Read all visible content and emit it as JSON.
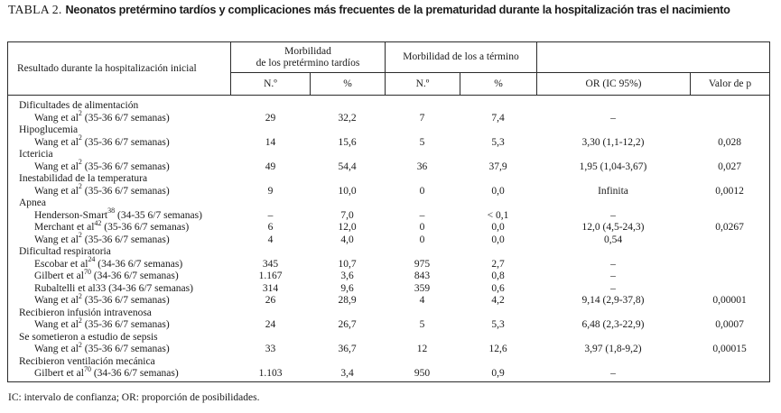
{
  "colors": {
    "ink": "#1a1a1a",
    "border": "#2b2b2b",
    "background": "#ffffff"
  },
  "title": {
    "prefix": "TABLA 2.",
    "text": "Neonatos pretérmino tardíos y complicaciones más frecuentes de la prematuridad durante la hospitalización tras el nacimiento"
  },
  "table": {
    "header": {
      "col_resultado": "Resultado durante la hospitalización inicial",
      "group_preterm_line1": "Morbilidad",
      "group_preterm_line2": "de los pretérmino tardíos",
      "group_term": "Morbilidad de los a término",
      "sub": [
        "N.º",
        "%",
        "N.º",
        "%",
        "OR (IC 95%)",
        "Valor de p"
      ]
    },
    "rows": [
      {
        "type": "category",
        "label": "Dificultades de alimentación"
      },
      {
        "type": "study",
        "pre": "Wang et al",
        "sup": "2",
        "post": " (35-36 6/7 semanas)",
        "cells": [
          "29",
          "32,2",
          "7",
          "7,4",
          "–",
          ""
        ]
      },
      {
        "type": "category",
        "label": "Hipoglucemia"
      },
      {
        "type": "study",
        "pre": "Wang et al",
        "sup": "2",
        "post": " (35-36 6/7 semanas)",
        "cells": [
          "14",
          "15,6",
          "5",
          "5,3",
          "3,30 (1,1-12,2)",
          "0,028"
        ]
      },
      {
        "type": "category",
        "label": "Ictericia"
      },
      {
        "type": "study",
        "pre": "Wang et al",
        "sup": "2",
        "post": " (35-36 6/7 semanas)",
        "cells": [
          "49",
          "54,4",
          "36",
          "37,9",
          "1,95 (1,04-3,67)",
          "0,027"
        ]
      },
      {
        "type": "category",
        "label": "Inestabilidad de la temperatura"
      },
      {
        "type": "study",
        "pre": "Wang et al",
        "sup": "2",
        "post": " (35-36 6/7 semanas)",
        "cells": [
          "9",
          "10,0",
          "0",
          "0,0",
          "Infinita",
          "0,0012"
        ]
      },
      {
        "type": "category",
        "label": "Apnea"
      },
      {
        "type": "study",
        "pre": "Henderson-Smart",
        "sup": "38",
        "post": " (34-35 6/7 semanas)",
        "cells": [
          "–",
          "7,0",
          "–",
          "< 0,1",
          "–",
          ""
        ]
      },
      {
        "type": "study",
        "pre": "Merchant et al",
        "sup": "42",
        "post": " (35-36 6/7 semanas)",
        "cells": [
          "6",
          "12,0",
          "0",
          "0,0",
          "12,0 (4,5-24,3)",
          "0,0267"
        ]
      },
      {
        "type": "study",
        "pre": "Wang et al",
        "sup": "2",
        "post": " (35-36 6/7 semanas)",
        "cells": [
          "4",
          "4,0",
          "0",
          "0,0",
          "0,54",
          ""
        ]
      },
      {
        "type": "category",
        "label": "Dificultad respiratoria"
      },
      {
        "type": "study",
        "pre": "Escobar et al",
        "sup": "24",
        "post": " (34-36 6/7 semanas)",
        "cells": [
          "345",
          "10,7",
          "975",
          "2,7",
          "–",
          ""
        ]
      },
      {
        "type": "study",
        "pre": "Gilbert et al",
        "sup": "70",
        "post": " (34-36 6/7 semanas)",
        "cells": [
          "1.167",
          "3,6",
          "843",
          "0,8",
          "–",
          ""
        ]
      },
      {
        "type": "study",
        "pre": "Rubaltelli et al33",
        "sup": "",
        "post": " (34-36 6/7 semanas)",
        "cells": [
          "314",
          "9,6",
          "359",
          "0,6",
          "–",
          ""
        ]
      },
      {
        "type": "study",
        "pre": "Wang et al",
        "sup": "2",
        "post": " (35-36 6/7 semanas)",
        "cells": [
          "26",
          "28,9",
          "4",
          "4,2",
          "9,14 (2,9-37,8)",
          "0,00001"
        ]
      },
      {
        "type": "category",
        "label": "Recibieron infusión intravenosa"
      },
      {
        "type": "study",
        "pre": "Wang et al",
        "sup": "2",
        "post": " (35-36 6/7 semanas)",
        "cells": [
          "24",
          "26,7",
          "5",
          "5,3",
          "6,48 (2,3-22,9)",
          "0,0007"
        ]
      },
      {
        "type": "category",
        "label": "Se sometieron a estudio de sepsis"
      },
      {
        "type": "study",
        "pre": "Wang et al",
        "sup": "2",
        "post": " (35-36 6/7 semanas)",
        "cells": [
          "33",
          "36,7",
          "12",
          "12,6",
          "3,97 (1,8-9,2)",
          "0,00015"
        ]
      },
      {
        "type": "category",
        "label": "Recibieron ventilación mecánica"
      },
      {
        "type": "study",
        "pre": "Gilbert et al",
        "sup": "70",
        "post": " (34-36 6/7 semanas)",
        "cells": [
          "1.103",
          "3,4",
          "950",
          "0,9",
          "–",
          ""
        ]
      }
    ]
  },
  "footnote": "IC: intervalo de confianza; OR: proporción de posibilidades."
}
